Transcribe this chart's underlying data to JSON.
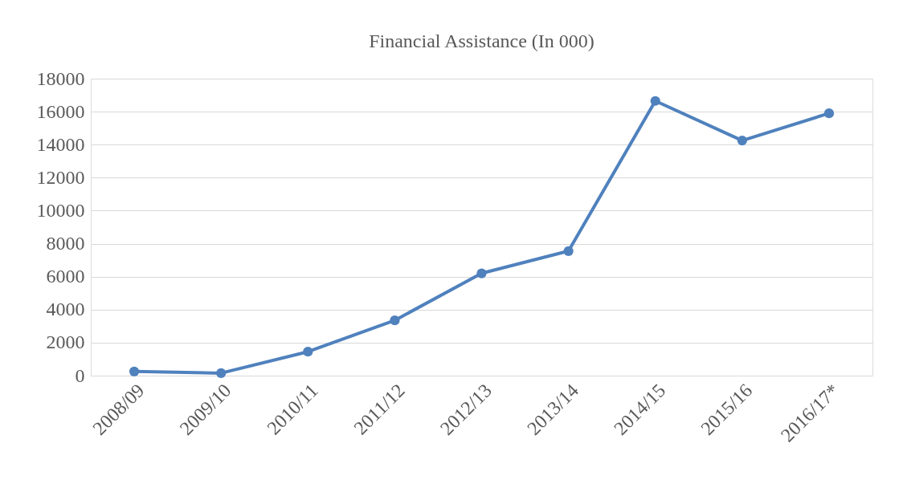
{
  "chart_data": {
    "type": "line",
    "title": "Financial Assistance (In 000)",
    "categories": [
      "2008/09",
      "2009/10",
      "2010/11",
      "2011/12",
      "2012/13",
      "2013/14",
      "2014/15",
      "2015/16",
      "2016/17*"
    ],
    "series": [
      {
        "color": "#4f81bd",
        "values": [
          250,
          150,
          1450,
          3350,
          6200,
          7550,
          16650,
          14250,
          15900
        ]
      }
    ],
    "ylim": [
      0,
      18000
    ],
    "yticks": [
      0,
      2000,
      4000,
      6000,
      8000,
      10000,
      12000,
      14000,
      16000,
      18000
    ],
    "grid": "y",
    "marker": "circle",
    "line_style": "solid"
  }
}
